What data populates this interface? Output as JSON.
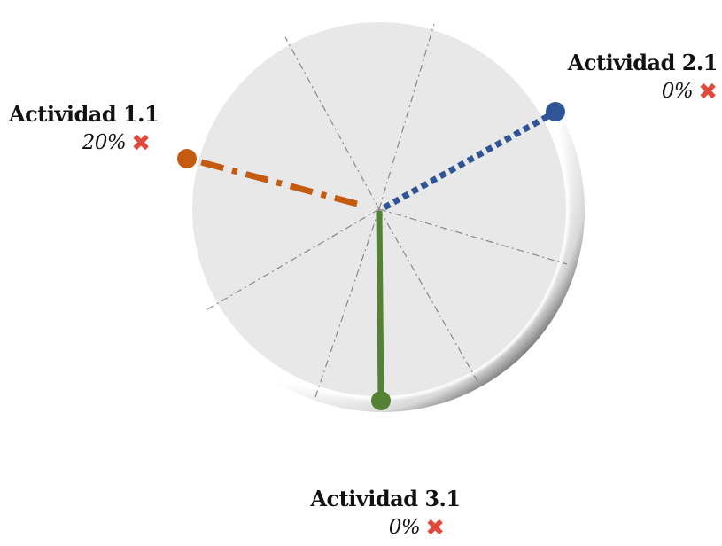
{
  "activities": [
    {
      "name": "Actividad 1.1",
      "percent": "20%",
      "status_icon": "cross-icon",
      "color": "#c55a11",
      "line_style": "dash-dot"
    },
    {
      "name": "Actividad 2.1",
      "percent": "0%",
      "status_icon": "cross-icon",
      "color": "#2f5597",
      "line_style": "dotted"
    },
    {
      "name": "Actividad 3.1",
      "percent": "0%",
      "status_icon": "cross-icon",
      "color": "#548235",
      "line_style": "solid"
    }
  ],
  "colors": {
    "wheel_fill": "#e8e8e8",
    "wheel_rim": "#9a9a9a",
    "spokes": "#888888",
    "status_cross": "#e04a3c"
  }
}
